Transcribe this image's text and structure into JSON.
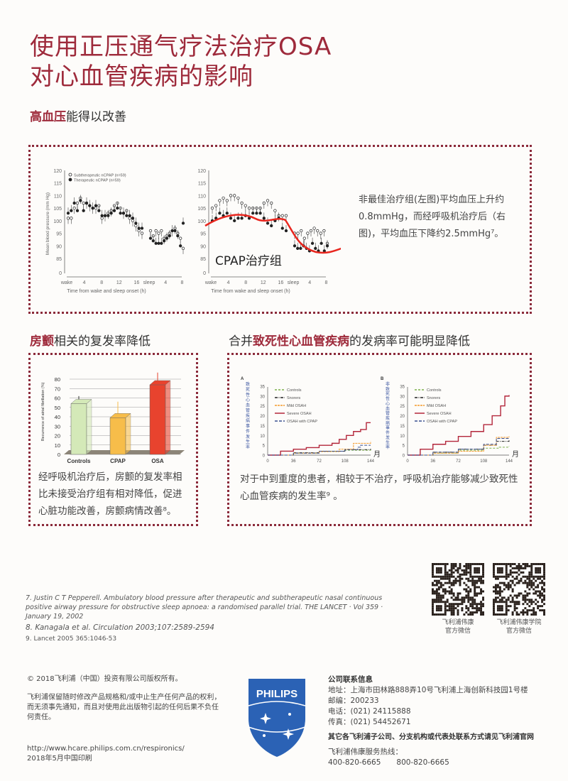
{
  "title": {
    "line1": "使用正压通气疗法治疗OSA",
    "line2": "对心血管疾病的影响"
  },
  "section1": {
    "heading_bold": "高血压",
    "heading_rest": "能得以改善",
    "text": "非最佳治疗组(左图)平均血压上升约0.8mmHg，而经呼吸机治疗后（右图)，平均血压下降约2.5mmHg⁷。",
    "annotation": "CPAP治疗组"
  },
  "section2": {
    "heading_bold": "房颤",
    "heading_rest": "相关的复发率降低",
    "text": "经呼吸机治疗后，房颤的复发率相比未接受治疗组有相对降低，促进心脏功能改善，房颤病情改善⁸。"
  },
  "section3": {
    "heading_pre": "合并",
    "heading_bold": "致死性心血管疾病",
    "heading_rest": "的发病率可能明显降低",
    "text": "对于中到重度的患者，相较于不治疗，呼吸机治疗能够减少致死性心血管疾病的发生率⁹ 。"
  },
  "chart_data": [
    {
      "type": "line",
      "panel": "left",
      "ylabel": "Mean blood pressure (mm Hg)",
      "xlabel": "Time from wake and sleep onset (h)",
      "yticks": [
        "0",
        "85",
        "90",
        "95",
        "100",
        "105",
        "110",
        "115",
        "120"
      ],
      "xticks": [
        "wake",
        "4",
        "8",
        "12",
        "16",
        "sleep",
        "4",
        "8"
      ],
      "series": [
        {
          "name": "Subtherapeutic nCPAP (n=59)",
          "wake": [
            101,
            101,
            105,
            107,
            109,
            107,
            107,
            106,
            105,
            105,
            106,
            101,
            102,
            103,
            104,
            106,
            107,
            105,
            103,
            104,
            101,
            100,
            98,
            96,
            95
          ],
          "sleep": [
            96,
            94,
            96,
            95,
            96,
            93,
            94,
            95,
            96,
            97,
            95,
            93,
            89
          ]
        },
        {
          "name": "Therapeutic nCPAP (n=59)",
          "wake": [
            103,
            104,
            107,
            104,
            108,
            104,
            107,
            106,
            105,
            106,
            104,
            102,
            102,
            102,
            103,
            104,
            105,
            103,
            103,
            102,
            102,
            101,
            99,
            97,
            97
          ],
          "sleep": [
            93,
            92,
            91,
            91,
            91,
            92,
            93,
            94,
            96,
            96,
            94,
            90,
            99
          ]
        }
      ]
    },
    {
      "type": "line",
      "panel": "right",
      "xlabel": "Time from wake and sleep onset (h)",
      "yticks": [
        "0",
        "85",
        "90",
        "95",
        "100",
        "105",
        "110",
        "115",
        "120"
      ],
      "xticks": [
        "wake",
        "4",
        "8",
        "12",
        "16",
        "sleep",
        "4",
        "8"
      ],
      "series": [
        {
          "wake": [
            105,
            106,
            108,
            109,
            108,
            110,
            110,
            109,
            107,
            106,
            105,
            105,
            105,
            105,
            107,
            108,
            107,
            104,
            102,
            102,
            102
          ],
          "sleep": [
            95,
            95,
            96,
            93,
            95,
            96,
            97,
            96,
            95,
            96,
            91
          ]
        },
        {
          "wake": [
            100,
            101,
            103,
            102,
            103,
            101,
            100,
            101,
            101,
            102,
            101,
            103,
            103,
            103,
            101,
            99,
            98,
            100,
            101,
            97,
            96
          ],
          "sleep": [
            90,
            89,
            89,
            90,
            89,
            88,
            91,
            89,
            88,
            91,
            88,
            90
          ]
        }
      ]
    },
    {
      "type": "bar",
      "ylabel": "Recurrence of atrial fibrillation (%)",
      "categories": [
        "Controls",
        "CPAP",
        "OSA"
      ],
      "values": [
        54,
        39,
        74
      ],
      "error_upper": [
        62,
        56,
        87
      ],
      "colors": [
        "#d4e9b8",
        "#f7bd4a",
        "#e8432e"
      ],
      "ylim": [
        0,
        80
      ],
      "yticks": [
        "0",
        "10",
        "20",
        "30",
        "40",
        "50",
        "60",
        "70",
        "80"
      ]
    },
    {
      "type": "line",
      "panel": "A",
      "ylabel": "致死性心血管疾病事件发生率",
      "xunit": "月",
      "xticks": [
        "0",
        "36",
        "72",
        "108",
        "144"
      ],
      "yticks": [
        "0",
        "5",
        "10",
        "15",
        "20",
        "25",
        "30",
        "35"
      ],
      "ylim": [
        0,
        35
      ],
      "series": [
        {
          "name": "Controls",
          "color": "#7db04a",
          "points": [
            [
              0,
              0
            ],
            [
              36,
              1
            ],
            [
              72,
              2
            ],
            [
              108,
              2.5
            ],
            [
              144,
              3
            ]
          ]
        },
        {
          "name": "Snorers",
          "color": "#222222",
          "points": [
            [
              0,
              0
            ],
            [
              36,
              1.2
            ],
            [
              72,
              2
            ],
            [
              108,
              2.8
            ],
            [
              144,
              3.2
            ]
          ]
        },
        {
          "name": "Mild OSAH",
          "color": "#f39a2a",
          "points": [
            [
              0,
              0
            ],
            [
              36,
              1
            ],
            [
              72,
              1.8
            ],
            [
              100,
              3
            ],
            [
              120,
              6
            ],
            [
              144,
              7
            ]
          ]
        },
        {
          "name": "Severe OSAH",
          "color": "#b3263a",
          "points": [
            [
              0,
              0
            ],
            [
              18,
              2
            ],
            [
              36,
              3
            ],
            [
              54,
              3.8
            ],
            [
              72,
              5
            ],
            [
              90,
              6
            ],
            [
              100,
              8
            ],
            [
              110,
              10
            ],
            [
              120,
              12
            ],
            [
              130,
              13
            ],
            [
              138,
              16.5
            ],
            [
              144,
              16.5
            ]
          ]
        },
        {
          "name": "OSAH with CPAP",
          "color": "#3a4f8f",
          "points": [
            [
              0,
              0
            ],
            [
              36,
              1
            ],
            [
              72,
              2
            ],
            [
              108,
              2.8
            ],
            [
              126,
              4
            ],
            [
              130,
              5
            ],
            [
              144,
              5
            ]
          ]
        }
      ]
    },
    {
      "type": "line",
      "panel": "B",
      "ylabel": "非致死性心血管疾病事件发生率",
      "xunit": "月",
      "xticks": [
        "0",
        "36",
        "72",
        "108",
        "144"
      ],
      "yticks": [
        "0",
        "5",
        "10",
        "15",
        "20",
        "25",
        "30",
        "35"
      ],
      "ylim": [
        0,
        35
      ],
      "series": [
        {
          "name": "Controls",
          "color": "#7db04a",
          "points": [
            [
              0,
              0
            ],
            [
              36,
              1
            ],
            [
              72,
              2.5
            ],
            [
              108,
              3.5
            ],
            [
              130,
              4
            ],
            [
              144,
              4.5
            ]
          ]
        },
        {
          "name": "Snorers",
          "color": "#222222",
          "points": [
            [
              0,
              0
            ],
            [
              36,
              1.5
            ],
            [
              72,
              3
            ],
            [
              108,
              5
            ],
            [
              126,
              7
            ],
            [
              144,
              7.5
            ]
          ]
        },
        {
          "name": "Mild OSAH",
          "color": "#f39a2a",
          "points": [
            [
              0,
              0
            ],
            [
              36,
              1
            ],
            [
              72,
              2
            ],
            [
              108,
              5
            ],
            [
              126,
              9
            ],
            [
              144,
              9.5
            ]
          ]
        },
        {
          "name": "Severe OSAH",
          "color": "#b3263a",
          "points": [
            [
              0,
              0
            ],
            [
              18,
              3
            ],
            [
              36,
              5.5
            ],
            [
              54,
              7
            ],
            [
              72,
              9.5
            ],
            [
              90,
              12
            ],
            [
              108,
              15.5
            ],
            [
              120,
              20
            ],
            [
              132,
              25
            ],
            [
              138,
              30
            ],
            [
              144,
              30.5
            ]
          ]
        },
        {
          "name": "OSAH with CPAP",
          "color": "#3a4f8f",
          "points": [
            [
              0,
              0
            ],
            [
              36,
              1.5
            ],
            [
              72,
              3
            ],
            [
              108,
              5.5
            ],
            [
              126,
              8.5
            ],
            [
              144,
              8.5
            ]
          ]
        }
      ]
    }
  ],
  "references": [
    "7. Justin C T Pepperell. Ambulatory blood pressure after therapeutic and subtherapeutic nasal continuous positive airway pressure for obstructive sleep apnoea: a randomised parallel trial. THE LANCET · Vol 359 · January 19, 2002",
    "8. Kanagala et al. Circulation 2003;107:2589-2594",
    "9. Lancet 2005 365:1046-53"
  ],
  "qr": [
    {
      "line1": "飞利浦伟康",
      "line2": "官方微信"
    },
    {
      "line1": "飞利浦伟康学院",
      "line2": "官方微信"
    }
  ],
  "footer": {
    "copyright": "© 2018飞利浦（中国）投资有限公司版权所有。",
    "disclaimer": "飞利浦保留随时修改产品规格和/或中止生产任何产品的权利，而无须事先通知，而且对使用此出版物引起的任何后果不负任何责任。",
    "url": "http://www.hcare.philips.com.cn/respironics/",
    "printed": "2018年5月中国印刷",
    "logo": "PHILIPS",
    "contact_title": "公司联系信息",
    "address": "地址：上海市田林路888弄10号飞利浦上海创新科技园1号楼",
    "postcode": "邮编：200233",
    "phone": "电话：(021) 24115888",
    "fax": "传真：(021) 54452671",
    "other": "其它各飞利浦子公司、分支机构或代表处联系方式请见飞利浦官网",
    "hotline_label": "飞利浦伟康服务热线：",
    "hotline1": "400-820-6665",
    "hotline2": "800-820-6665"
  }
}
